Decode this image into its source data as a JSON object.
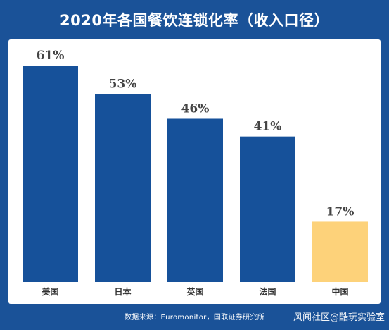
{
  "title": "2020年各国餐饮连锁化率（收入口径）",
  "source": "数据来源：Euromonitor，国联证券研究所",
  "watermark": "风闻社区@酷玩实验室",
  "colors": {
    "background": "#1a5298",
    "bar": "#16519a",
    "highlight_bar": "#fdd27a",
    "label": "#444444"
  },
  "chart_data": {
    "type": "bar",
    "title": "2020年各国餐饮连锁化率（收入口径）",
    "categories": [
      "美国",
      "日本",
      "英国",
      "法国",
      "中国"
    ],
    "values": [
      61,
      53,
      46,
      41,
      17
    ],
    "value_labels": [
      "61%",
      "53%",
      "46%",
      "41%",
      "17%"
    ],
    "highlight": [
      "中国"
    ],
    "ylim": [
      0,
      61
    ],
    "grid": false,
    "legend": "none"
  }
}
